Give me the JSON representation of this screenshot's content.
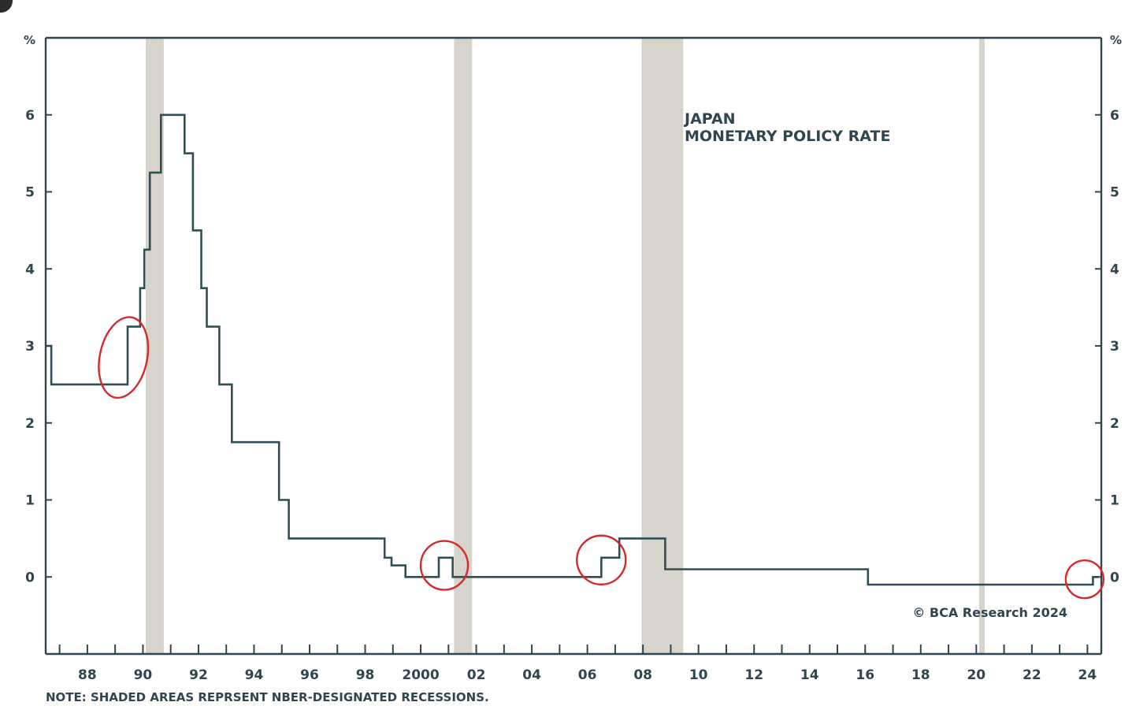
{
  "chart_data": {
    "type": "line",
    "title": [
      "JAPAN",
      "MONETARY POLICY RATE"
    ],
    "y_unit_left": "%",
    "y_unit_right": "%",
    "ylim": [
      -1,
      7
    ],
    "xlim": [
      1986.5,
      2024.5
    ],
    "y_ticks": [
      0,
      1,
      2,
      3,
      4,
      5,
      6
    ],
    "x_ticks": [
      {
        "value": 1988,
        "label": "88"
      },
      {
        "value": 1990,
        "label": "90"
      },
      {
        "value": 1992,
        "label": "92"
      },
      {
        "value": 1994,
        "label": "94"
      },
      {
        "value": 1996,
        "label": "96"
      },
      {
        "value": 1998,
        "label": "98"
      },
      {
        "value": 2000,
        "label": "2000"
      },
      {
        "value": 2002,
        "label": "02"
      },
      {
        "value": 2004,
        "label": "04"
      },
      {
        "value": 2006,
        "label": "06"
      },
      {
        "value": 2008,
        "label": "08"
      },
      {
        "value": 2010,
        "label": "10"
      },
      {
        "value": 2012,
        "label": "12"
      },
      {
        "value": 2014,
        "label": "14"
      },
      {
        "value": 2016,
        "label": "16"
      },
      {
        "value": 2018,
        "label": "18"
      },
      {
        "value": 2020,
        "label": "20"
      },
      {
        "value": 2022,
        "label": "22"
      },
      {
        "value": 2024,
        "label": "24"
      }
    ],
    "recessions": [
      [
        1990.1,
        1990.75
      ],
      [
        2001.2,
        2001.85
      ],
      [
        2007.95,
        2009.45
      ],
      [
        2020.1,
        2020.3
      ]
    ],
    "series": [
      {
        "color": "#2f4f57",
        "points": [
          [
            1986.5,
            3.0
          ],
          [
            1986.7,
            2.5
          ],
          [
            1989.35,
            2.5
          ],
          [
            1989.45,
            3.25
          ],
          [
            1989.9,
            3.75
          ],
          [
            1990.05,
            4.25
          ],
          [
            1990.25,
            5.25
          ],
          [
            1990.65,
            6.0
          ],
          [
            1991.5,
            5.5
          ],
          [
            1991.8,
            4.5
          ],
          [
            1992.1,
            3.75
          ],
          [
            1992.3,
            3.25
          ],
          [
            1992.75,
            2.5
          ],
          [
            1993.2,
            1.75
          ],
          [
            1994.9,
            1.0
          ],
          [
            1995.25,
            0.5
          ],
          [
            1998.7,
            0.25
          ],
          [
            1998.95,
            0.15
          ],
          [
            1999.45,
            0.0
          ],
          [
            2000.65,
            0.25
          ],
          [
            2001.15,
            0.0
          ],
          [
            2006.5,
            0.25
          ],
          [
            2007.15,
            0.5
          ],
          [
            2008.8,
            0.1
          ],
          [
            2016.1,
            -0.1
          ],
          [
            2024.2,
            0.0
          ],
          [
            2024.4,
            0.0
          ]
        ]
      }
    ],
    "highlight_circles": [
      {
        "x": 1989.3,
        "y": 2.85
      },
      {
        "x": 2000.85,
        "y": 0.15
      },
      {
        "x": 2006.5,
        "y": 0.22
      },
      {
        "x": 2023.9,
        "y": -0.03
      }
    ],
    "grid": false,
    "credit": "© BCA Research 2024",
    "note": "NOTE: SHADED AREAS REPRSENT NBER-DESIGNATED RECESSIONS."
  },
  "colors": {
    "line": "#2f4f57",
    "axis": "#2f4650",
    "recession": "#d6d4cb",
    "circle": "#d42a2a"
  }
}
